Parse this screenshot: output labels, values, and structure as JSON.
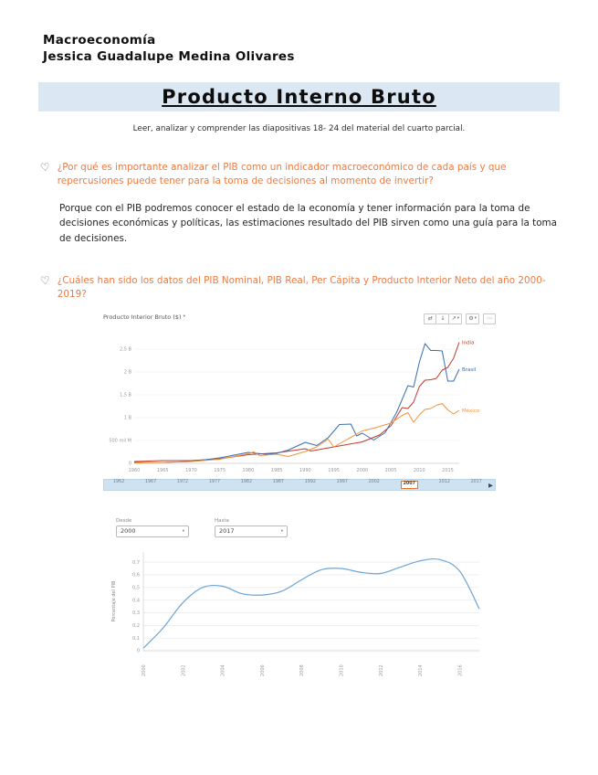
{
  "colors": {
    "banner_bg": "#dbe8f4",
    "question_text": "#ec7b42"
  },
  "icons": {
    "heart": "♡",
    "caret": "▾",
    "play": "▶"
  },
  "header": {
    "course": "Macroeconomía",
    "student": "Jessica Guadalupe Medina Olivares"
  },
  "title": {
    "text": "Producto Interno Bruto",
    "instructions": "Leer, analizar y comprender las diapositivas 18- 24 del material del cuarto parcial."
  },
  "questions": [
    {
      "text": "¿Por qué es importante analizar el PIB como un indicador macroeconómico de cada país y que repercusiones puede tener para la toma de decisiones al momento de invertir?",
      "answer": "Porque con el PIB podremos conocer el estado de la economía y tener información para la toma de decisiones económicas y políticas, las estimaciones resultado del PIB sirven como una guía para la toma de decisiones."
    },
    {
      "text": "¿Cuáles han sido los datos del PIB Nominal, PIB Real, Per Cápita y Producto Interior Neto del año 2000-2019?",
      "answer": ""
    }
  ],
  "chart_data": [
    {
      "type": "line",
      "title": "Producto Interior Bruto ($)",
      "x_range": [
        1960,
        2017
      ],
      "y_range": [
        0,
        2.8
      ],
      "x_ticks": [
        1960,
        1965,
        1970,
        1975,
        1980,
        1985,
        1990,
        1995,
        2000,
        2005,
        2010,
        2015
      ],
      "y_ticks": [
        {
          "value": 0,
          "label": "0"
        },
        {
          "value": 0.5,
          "label": "500 mil M"
        },
        {
          "value": 1,
          "label": "1 B"
        },
        {
          "value": 1.5,
          "label": "1,5 B"
        },
        {
          "value": 2,
          "label": "2 B"
        },
        {
          "value": 2.5,
          "label": "2,5 B"
        }
      ],
      "series": [
        {
          "name": "India",
          "color": "#c0392b",
          "points": [
            [
              1960,
              0.04
            ],
            [
              1965,
              0.06
            ],
            [
              1970,
              0.06
            ],
            [
              1975,
              0.1
            ],
            [
              1980,
              0.19
            ],
            [
              1985,
              0.23
            ],
            [
              1990,
              0.32
            ],
            [
              1991,
              0.27
            ],
            [
              1995,
              0.36
            ],
            [
              2000,
              0.47
            ],
            [
              2003,
              0.62
            ],
            [
              2005,
              0.82
            ],
            [
              2007,
              1.22
            ],
            [
              2008,
              1.2
            ],
            [
              2009,
              1.34
            ],
            [
              2010,
              1.68
            ],
            [
              2011,
              1.82
            ],
            [
              2012,
              1.83
            ],
            [
              2013,
              1.86
            ],
            [
              2014,
              2.04
            ],
            [
              2015,
              2.1
            ],
            [
              2016,
              2.3
            ],
            [
              2017,
              2.65
            ]
          ]
        },
        {
          "name": "Brasil",
          "color": "#3a6fb0",
          "points": [
            [
              1960,
              0.02
            ],
            [
              1965,
              0.02
            ],
            [
              1970,
              0.04
            ],
            [
              1975,
              0.12
            ],
            [
              1980,
              0.24
            ],
            [
              1983,
              0.2
            ],
            [
              1985,
              0.22
            ],
            [
              1987,
              0.29
            ],
            [
              1990,
              0.46
            ],
            [
              1992,
              0.39
            ],
            [
              1994,
              0.56
            ],
            [
              1996,
              0.85
            ],
            [
              1998,
              0.86
            ],
            [
              1999,
              0.6
            ],
            [
              2000,
              0.66
            ],
            [
              2002,
              0.51
            ],
            [
              2004,
              0.67
            ],
            [
              2005,
              0.89
            ],
            [
              2006,
              1.11
            ],
            [
              2007,
              1.4
            ],
            [
              2008,
              1.7
            ],
            [
              2009,
              1.67
            ],
            [
              2010,
              2.21
            ],
            [
              2011,
              2.62
            ],
            [
              2012,
              2.47
            ],
            [
              2013,
              2.47
            ],
            [
              2014,
              2.46
            ],
            [
              2015,
              1.8
            ],
            [
              2016,
              1.8
            ],
            [
              2017,
              2.06
            ]
          ]
        },
        {
          "name": "México",
          "color": "#f0943a",
          "points": [
            [
              1960,
              0.01
            ],
            [
              1965,
              0.02
            ],
            [
              1970,
              0.04
            ],
            [
              1975,
              0.09
            ],
            [
              1980,
              0.21
            ],
            [
              1981,
              0.25
            ],
            [
              1982,
              0.17
            ],
            [
              1985,
              0.2
            ],
            [
              1987,
              0.15
            ],
            [
              1990,
              0.26
            ],
            [
              1992,
              0.36
            ],
            [
              1994,
              0.53
            ],
            [
              1995,
              0.36
            ],
            [
              1997,
              0.5
            ],
            [
              2000,
              0.71
            ],
            [
              2002,
              0.77
            ],
            [
              2005,
              0.88
            ],
            [
              2007,
              1.05
            ],
            [
              2008,
              1.11
            ],
            [
              2009,
              0.9
            ],
            [
              2010,
              1.06
            ],
            [
              2011,
              1.18
            ],
            [
              2012,
              1.2
            ],
            [
              2013,
              1.27
            ],
            [
              2014,
              1.31
            ],
            [
              2015,
              1.17
            ],
            [
              2016,
              1.08
            ],
            [
              2017,
              1.16
            ]
          ]
        }
      ],
      "toolbar": [
        {
          "name": "compare-arrows",
          "glyph": "⇄"
        },
        {
          "name": "download",
          "glyph": "↓"
        },
        {
          "name": "share",
          "glyph": "↗"
        },
        {
          "name": "settings",
          "glyph": "⚙"
        },
        {
          "name": "more",
          "glyph": "⋯"
        }
      ],
      "timeline": {
        "years": [
          "1962",
          "1967",
          "1972",
          "1977",
          "1982",
          "1987",
          "1992",
          "1997",
          "2002",
          "2007",
          "2012",
          "2017"
        ],
        "selected": "2007"
      }
    },
    {
      "type": "line",
      "ylabel": "Porcentaje del PIB",
      "controls": {
        "from_label": "Desde",
        "from_value": "2000",
        "to_label": "Hasta",
        "to_value": "2017"
      },
      "color": "#6aa5d8",
      "x": [
        2000,
        2001,
        2002,
        2003,
        2004,
        2005,
        2006,
        2007,
        2008,
        2009,
        2010,
        2011,
        2012,
        2013,
        2014,
        2015,
        2016,
        2017
      ],
      "values": [
        0.02,
        0.18,
        0.38,
        0.5,
        0.51,
        0.45,
        0.44,
        0.47,
        0.56,
        0.64,
        0.65,
        0.62,
        0.61,
        0.66,
        0.71,
        0.72,
        0.63,
        0.33
      ],
      "x_ticks": [
        2000,
        2002,
        2004,
        2006,
        2008,
        2010,
        2012,
        2014,
        2016
      ],
      "y_ticks": [
        {
          "value": 0,
          "label": "0"
        },
        {
          "value": 0.1,
          "label": "0,1"
        },
        {
          "value": 0.2,
          "label": "0,2"
        },
        {
          "value": 0.3,
          "label": "0,3"
        },
        {
          "value": 0.4,
          "label": "0,4"
        },
        {
          "value": 0.5,
          "label": "0,5"
        },
        {
          "value": 0.6,
          "label": "0,6"
        },
        {
          "value": 0.7,
          "label": "0,7"
        }
      ]
    }
  ]
}
